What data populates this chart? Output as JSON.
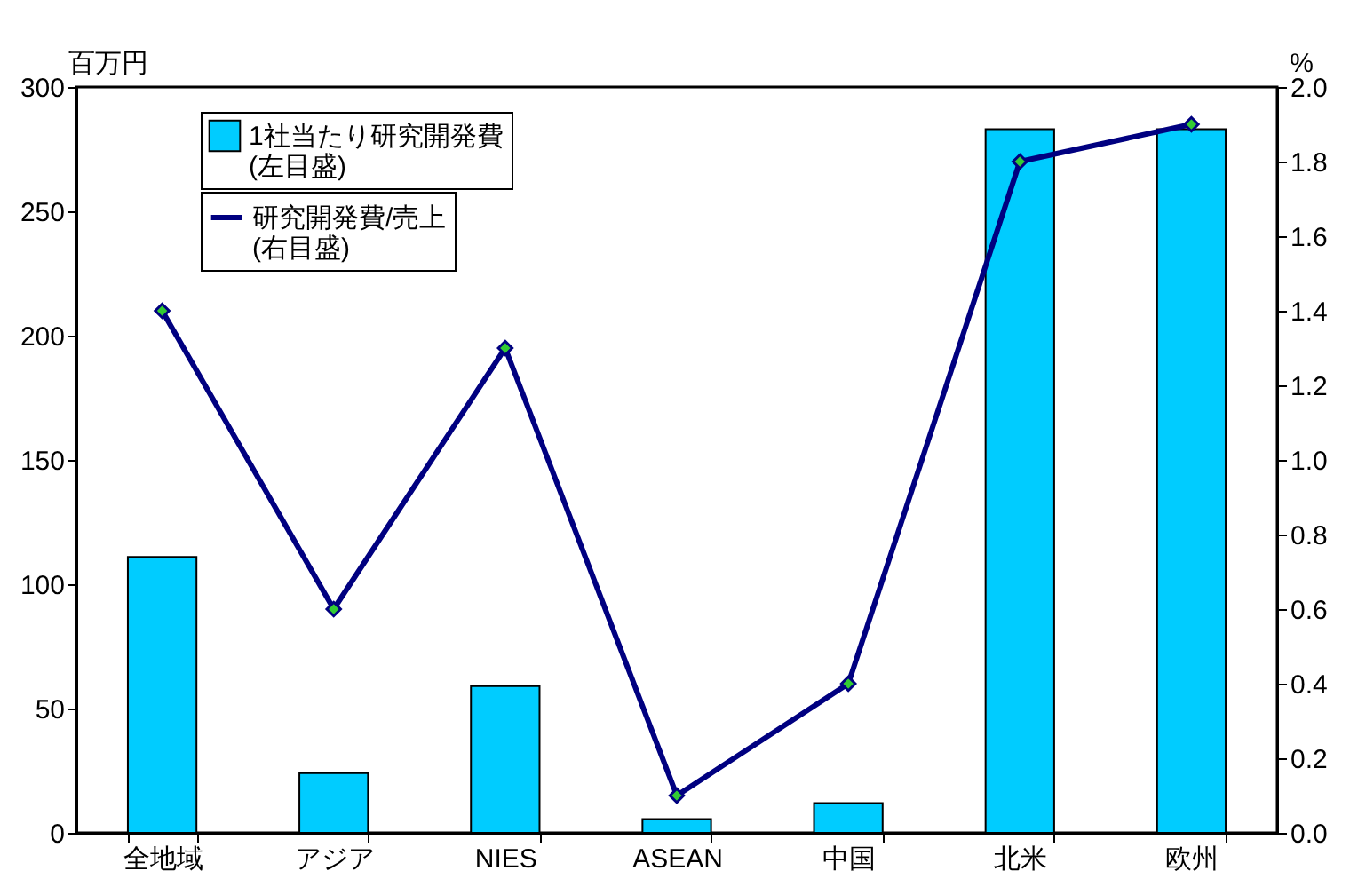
{
  "chart_data": {
    "type": "bar",
    "categories": [
      "全地域",
      "アジア",
      "NIES",
      "ASEAN",
      "中国",
      "北米",
      "欧州"
    ],
    "ylabel": "百万円",
    "y2label": "%",
    "series": [
      {
        "name": "1社当たり研究開発費\n(左目盛)",
        "color": "#00ccff",
        "values": [
          111,
          24,
          59,
          5.5,
          12,
          283,
          283
        ]
      },
      {
        "name": "研究開発費/売上\n(右目盛)",
        "type": "line",
        "axis": "y2",
        "color": "#000080",
        "marker": "diamond",
        "values": [
          1.4,
          0.6,
          1.3,
          0.1,
          0.4,
          1.8,
          1.9
        ]
      }
    ],
    "ylim": [
      0,
      300
    ],
    "yticks": [
      0,
      50,
      100,
      150,
      200,
      250,
      300
    ],
    "y2lim": [
      0,
      2
    ],
    "y2ticks": [
      {
        "value": 0,
        "label": "0.0"
      },
      0.2,
      0.4,
      0.6,
      0.8,
      {
        "value": 1,
        "label": "1.0"
      },
      1.2,
      1.4,
      1.6,
      1.8,
      {
        "value": 2,
        "label": "2.0"
      }
    ],
    "grid": false,
    "legend": "top left"
  }
}
